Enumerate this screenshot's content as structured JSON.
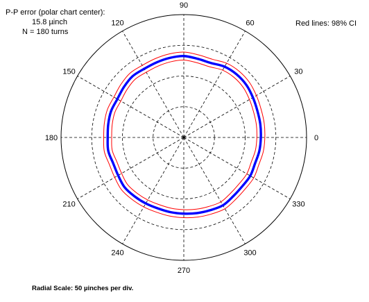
{
  "chart_data": {
    "type": "polar-line",
    "angle_unit": "degrees",
    "angle_tick_labels": [
      "0",
      "30",
      "60",
      "90",
      "120",
      "150",
      "180",
      "210",
      "240",
      "270",
      "300",
      "330"
    ],
    "radial_rings": 4,
    "radial_scale_label": "Radial Scale: 50 µinches per div.",
    "annotation_left_lines": [
      "P-P error (polar chart center):",
      "15.8 µinch",
      "N = 180 turns"
    ],
    "annotation_right": "Red lines: 98% CI",
    "grid": true,
    "series": [
      {
        "role": "mean",
        "color": "#0000ff",
        "line": "thick",
        "angles": [
          0,
          10,
          20,
          30,
          40,
          50,
          60,
          70,
          80,
          90,
          100,
          110,
          120,
          130,
          140,
          150,
          160,
          170,
          180,
          190,
          200,
          210,
          220,
          230,
          240,
          250,
          260,
          270,
          280,
          290,
          300,
          310,
          320,
          330,
          340,
          350
        ],
        "r": [
          2.51,
          2.53,
          2.55,
          2.6,
          2.66,
          2.68,
          2.66,
          2.58,
          2.6,
          2.65,
          2.63,
          2.6,
          2.58,
          2.6,
          2.55,
          2.5,
          2.52,
          2.5,
          2.48,
          2.5,
          2.45,
          2.47,
          2.52,
          2.5,
          2.48,
          2.46,
          2.47,
          2.48,
          2.5,
          2.52,
          2.55,
          2.5,
          2.48,
          2.5,
          2.47,
          2.5
        ]
      },
      {
        "role": "ci-upper",
        "color": "#ff0000",
        "line": "thin",
        "angles": [
          0,
          10,
          20,
          30,
          40,
          50,
          60,
          70,
          80,
          90,
          100,
          110,
          120,
          130,
          140,
          150,
          160,
          170,
          180,
          190,
          200,
          210,
          220,
          230,
          240,
          250,
          260,
          270,
          280,
          290,
          300,
          310,
          320,
          330,
          340,
          350
        ],
        "r": [
          2.64,
          2.66,
          2.68,
          2.73,
          2.79,
          2.81,
          2.79,
          2.71,
          2.73,
          2.78,
          2.76,
          2.73,
          2.71,
          2.73,
          2.68,
          2.63,
          2.65,
          2.63,
          2.61,
          2.63,
          2.58,
          2.6,
          2.65,
          2.63,
          2.61,
          2.59,
          2.6,
          2.61,
          2.63,
          2.65,
          2.68,
          2.63,
          2.61,
          2.63,
          2.6,
          2.63
        ]
      },
      {
        "role": "ci-lower",
        "color": "#ff0000",
        "line": "thin",
        "angles": [
          0,
          10,
          20,
          30,
          40,
          50,
          60,
          70,
          80,
          90,
          100,
          110,
          120,
          130,
          140,
          150,
          160,
          170,
          180,
          190,
          200,
          210,
          220,
          230,
          240,
          250,
          260,
          270,
          280,
          290,
          300,
          310,
          320,
          330,
          340,
          350
        ],
        "r": [
          2.38,
          2.4,
          2.42,
          2.47,
          2.53,
          2.55,
          2.53,
          2.45,
          2.47,
          2.52,
          2.5,
          2.47,
          2.45,
          2.47,
          2.42,
          2.37,
          2.39,
          2.37,
          2.35,
          2.37,
          2.32,
          2.34,
          2.39,
          2.37,
          2.35,
          2.33,
          2.34,
          2.35,
          2.37,
          2.39,
          2.42,
          2.37,
          2.35,
          2.37,
          2.34,
          2.37
        ]
      }
    ]
  }
}
